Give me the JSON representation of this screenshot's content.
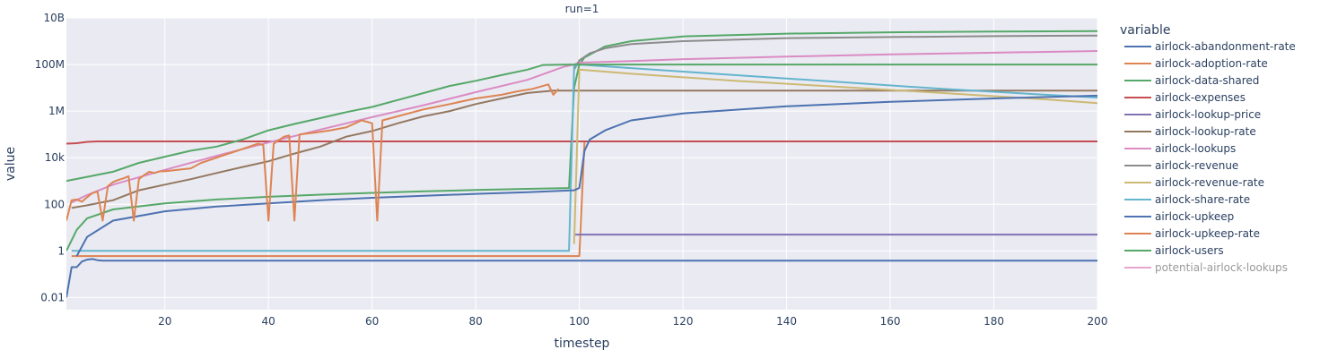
{
  "chart_data": {
    "type": "line",
    "facet_title": "run=1",
    "xlabel": "timestep",
    "ylabel": "value",
    "xlim": [
      1,
      200
    ],
    "ylim": [
      0.003,
      10000000000
    ],
    "y_scale": "log",
    "grid": true,
    "legend_title": "variable",
    "legend_position": "right",
    "x_ticks": [
      20,
      40,
      60,
      80,
      100,
      120,
      140,
      160,
      180,
      200
    ],
    "y_ticks": [
      {
        "value": 0.01,
        "label": "0.01"
      },
      {
        "value": 1,
        "label": "1"
      },
      {
        "value": 100,
        "label": "100"
      },
      {
        "value": 10000,
        "label": "10k"
      },
      {
        "value": 1000000,
        "label": "1M"
      },
      {
        "value": 100000000,
        "label": "100M"
      },
      {
        "value": 10000000000,
        "label": "10B"
      }
    ],
    "series": [
      {
        "name": "airlock-abandonment-rate",
        "color": "#4c72b0",
        "points": [
          [
            1,
            0.01
          ],
          [
            2,
            0.2
          ],
          [
            3,
            0.2
          ],
          [
            4,
            0.35
          ],
          [
            5,
            0.42
          ],
          [
            6,
            0.45
          ],
          [
            7,
            0.4
          ],
          [
            8,
            0.38
          ],
          [
            50,
            0.38
          ],
          [
            100,
            0.38
          ],
          [
            150,
            0.38
          ],
          [
            200,
            0.38
          ]
        ]
      },
      {
        "name": "airlock-adoption-rate",
        "color": "#dd8452",
        "points": [
          [
            2,
            0.6
          ],
          [
            100,
            0.6
          ],
          [
            101,
            50000
          ],
          [
            200,
            50000
          ]
        ]
      },
      {
        "name": "airlock-data-shared",
        "color": "#55a868",
        "points": [
          [
            1,
            1
          ],
          [
            3,
            8
          ],
          [
            5,
            25
          ],
          [
            10,
            60
          ],
          [
            20,
            110
          ],
          [
            30,
            160
          ],
          [
            40,
            210
          ],
          [
            50,
            260
          ],
          [
            60,
            310
          ],
          [
            70,
            360
          ],
          [
            80,
            410
          ],
          [
            90,
            460
          ],
          [
            98,
            500
          ],
          [
            99,
            10000000
          ],
          [
            100,
            100000000
          ],
          [
            101,
            200000000
          ],
          [
            105,
            600000000
          ],
          [
            110,
            1000000000
          ],
          [
            120,
            1600000000
          ],
          [
            140,
            2100000000
          ],
          [
            160,
            2400000000
          ],
          [
            180,
            2600000000
          ],
          [
            200,
            2700000000
          ]
        ]
      },
      {
        "name": "airlock-expenses",
        "color": "#c44e52",
        "points": [
          [
            1,
            40000
          ],
          [
            3,
            42000
          ],
          [
            5,
            48000
          ],
          [
            7,
            50000
          ],
          [
            10,
            50000
          ],
          [
            50,
            50000
          ],
          [
            100,
            50000
          ],
          [
            150,
            50000
          ],
          [
            200,
            50000
          ]
        ]
      },
      {
        "name": "airlock-lookup-price",
        "color": "#8172b3",
        "points": [
          [
            99,
            5
          ],
          [
            200,
            5
          ]
        ]
      },
      {
        "name": "airlock-lookup-rate",
        "color": "#937860",
        "points": [
          [
            2,
            70
          ],
          [
            5,
            90
          ],
          [
            10,
            150
          ],
          [
            15,
            400
          ],
          [
            20,
            700
          ],
          [
            25,
            1200
          ],
          [
            30,
            2200
          ],
          [
            35,
            4000
          ],
          [
            40,
            7000
          ],
          [
            45,
            15000
          ],
          [
            50,
            30000
          ],
          [
            55,
            80000
          ],
          [
            60,
            140000
          ],
          [
            65,
            300000
          ],
          [
            70,
            600000
          ],
          [
            75,
            1000000
          ],
          [
            80,
            2000000
          ],
          [
            85,
            3500000
          ],
          [
            90,
            6000000
          ],
          [
            95,
            7500000
          ],
          [
            200,
            7500000
          ]
        ]
      },
      {
        "name": "airlock-lookups",
        "color": "#da8bc3",
        "points": [
          [
            2,
            120
          ],
          [
            5,
            250
          ],
          [
            10,
            700
          ],
          [
            20,
            3000
          ],
          [
            30,
            12000
          ],
          [
            40,
            45000
          ],
          [
            50,
            160000
          ],
          [
            60,
            550000
          ],
          [
            70,
            1800000
          ],
          [
            80,
            6500000
          ],
          [
            90,
            22000000
          ],
          [
            97,
            80000000
          ],
          [
            99,
            100000000
          ],
          [
            100,
            120000000
          ],
          [
            110,
            140000000
          ],
          [
            120,
            170000000
          ],
          [
            140,
            220000000
          ],
          [
            160,
            270000000
          ],
          [
            180,
            320000000
          ],
          [
            200,
            380000000
          ]
        ]
      },
      {
        "name": "airlock-revenue",
        "color": "#8c8c8c",
        "points": [
          [
            99,
            60000000
          ],
          [
            100,
            150000000
          ],
          [
            102,
            300000000
          ],
          [
            105,
            500000000
          ],
          [
            110,
            750000000
          ],
          [
            120,
            1000000000
          ],
          [
            140,
            1350000000
          ],
          [
            160,
            1500000000
          ],
          [
            180,
            1650000000
          ],
          [
            200,
            1750000000
          ]
        ]
      },
      {
        "name": "airlock-revenue-rate",
        "color": "#ccb974",
        "points": [
          [
            99,
            2
          ],
          [
            100,
            60000000
          ],
          [
            110,
            40000000
          ],
          [
            130,
            20000000
          ],
          [
            150,
            11000000
          ],
          [
            170,
            6000000
          ],
          [
            190,
            3200000
          ],
          [
            200,
            2200000
          ]
        ]
      },
      {
        "name": "airlock-share-rate",
        "color": "#64b5cd",
        "points": [
          [
            2,
            1
          ],
          [
            98,
            1
          ],
          [
            99,
            90000000
          ],
          [
            100,
            100000000
          ],
          [
            110,
            70000000
          ],
          [
            130,
            35000000
          ],
          [
            150,
            18000000
          ],
          [
            170,
            9000000
          ],
          [
            190,
            5000000
          ],
          [
            200,
            3800000
          ]
        ]
      },
      {
        "name": "airlock-upkeep",
        "color": "#4c72b0",
        "points": [
          [
            3,
            0.6
          ],
          [
            5,
            4
          ],
          [
            10,
            20
          ],
          [
            20,
            50
          ],
          [
            30,
            80
          ],
          [
            40,
            110
          ],
          [
            50,
            150
          ],
          [
            60,
            190
          ],
          [
            70,
            230
          ],
          [
            80,
            280
          ],
          [
            90,
            330
          ],
          [
            99,
            400
          ],
          [
            100,
            500
          ],
          [
            101,
            20000
          ],
          [
            102,
            60000
          ],
          [
            105,
            150000
          ],
          [
            110,
            400000
          ],
          [
            120,
            800000
          ],
          [
            140,
            1600000
          ],
          [
            160,
            2500000
          ],
          [
            180,
            3500000
          ],
          [
            200,
            4600000
          ]
        ]
      },
      {
        "name": "airlock-upkeep-rate",
        "color": "#dd8452",
        "points": [
          [
            1,
            20
          ],
          [
            2,
            150
          ],
          [
            3,
            160
          ],
          [
            4,
            130
          ],
          [
            5,
            200
          ],
          [
            6,
            300
          ],
          [
            7,
            350
          ],
          [
            8,
            20
          ],
          [
            9,
            600
          ],
          [
            10,
            900
          ],
          [
            11,
            1100
          ],
          [
            12,
            1300
          ],
          [
            13,
            1600
          ],
          [
            14,
            20
          ],
          [
            15,
            1200
          ],
          [
            16,
            1800
          ],
          [
            17,
            2500
          ],
          [
            18,
            2200
          ],
          [
            19,
            2600
          ],
          [
            20,
            2600
          ],
          [
            25,
            3500
          ],
          [
            27,
            6000
          ],
          [
            30,
            10000
          ],
          [
            34,
            20000
          ],
          [
            38,
            40000
          ],
          [
            39,
            35000
          ],
          [
            40,
            20
          ],
          [
            41,
            40000
          ],
          [
            43,
            80000
          ],
          [
            44,
            90000
          ],
          [
            45,
            20
          ],
          [
            46,
            100000
          ],
          [
            49,
            120000
          ],
          [
            52,
            150000
          ],
          [
            55,
            200000
          ],
          [
            58,
            400000
          ],
          [
            60,
            300000
          ],
          [
            61,
            20
          ],
          [
            62,
            400000
          ],
          [
            65,
            600000
          ],
          [
            70,
            1200000
          ],
          [
            75,
            2000000
          ],
          [
            80,
            3500000
          ],
          [
            85,
            5000000
          ],
          [
            88,
            7000000
          ],
          [
            91,
            9000000
          ],
          [
            94,
            14000000
          ],
          [
            95,
            5000000
          ],
          [
            96,
            9000000
          ]
        ]
      },
      {
        "name": "airlock-users",
        "color": "#55a868",
        "points": [
          [
            1,
            1000
          ],
          [
            5,
            1500
          ],
          [
            10,
            2500
          ],
          [
            15,
            6000
          ],
          [
            20,
            11000
          ],
          [
            25,
            20000
          ],
          [
            30,
            30000
          ],
          [
            35,
            60000
          ],
          [
            40,
            150000
          ],
          [
            45,
            280000
          ],
          [
            50,
            500000
          ],
          [
            55,
            900000
          ],
          [
            60,
            1500000
          ],
          [
            65,
            3000000
          ],
          [
            70,
            6000000
          ],
          [
            75,
            12000000
          ],
          [
            80,
            20000000
          ],
          [
            85,
            35000000
          ],
          [
            90,
            60000000
          ],
          [
            93,
            95000000
          ],
          [
            99,
            100000000
          ],
          [
            200,
            100000000
          ]
        ]
      },
      {
        "name": "potential-airlock-lookups",
        "color": "#e7a5ce",
        "dim": true,
        "points": []
      }
    ]
  }
}
